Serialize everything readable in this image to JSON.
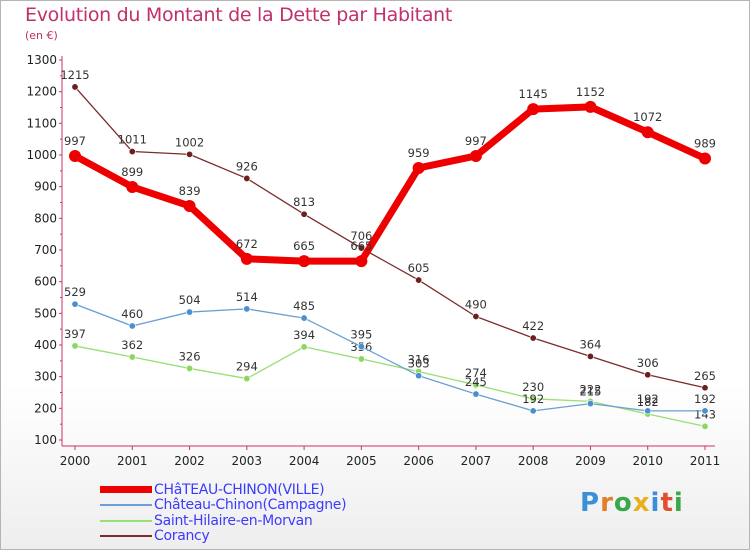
{
  "chart_data": {
    "type": "line",
    "title": "Evolution du Montant de la Dette par Habitant",
    "subtitle": "(en €)",
    "x": [
      "2000",
      "2001",
      "2002",
      "2003",
      "2004",
      "2005",
      "2006",
      "2007",
      "2008",
      "2009",
      "2010",
      "2011"
    ],
    "ylim": [
      100,
      1300
    ],
    "yticks": [
      100,
      200,
      300,
      400,
      500,
      600,
      700,
      800,
      900,
      1000,
      1100,
      1200,
      1300
    ],
    "grid": false,
    "legend_position": "bottom-left",
    "series": [
      {
        "name": "CHâTEAU-CHINON(VILLE)",
        "color": "#ee0000",
        "values": [
          997,
          899,
          839,
          672,
          665,
          665,
          959,
          997,
          1145,
          1152,
          1072,
          989
        ]
      },
      {
        "name": "Château-Chinon(Campagne)",
        "color": "#6b9fd4",
        "values": [
          529,
          460,
          504,
          514,
          485,
          395,
          303,
          245,
          192,
          215,
          192,
          192
        ]
      },
      {
        "name": "Saint-Hilaire-en-Morvan",
        "color": "#9ade74",
        "values": [
          397,
          362,
          326,
          294,
          394,
          356,
          316,
          274,
          230,
          222,
          182,
          143
        ]
      },
      {
        "name": "Corancy",
        "color": "#7a2b2b",
        "values": [
          1215,
          1011,
          1002,
          926,
          813,
          706,
          605,
          490,
          422,
          364,
          306,
          265
        ]
      }
    ]
  },
  "logo": {
    "letters": [
      "P",
      "r",
      "o",
      "x",
      "i",
      "t",
      "i"
    ],
    "colors": [
      "#3a8fd8",
      "#e0802a",
      "#3aa84a",
      "#e8b020",
      "#3a8fd8",
      "#e05030",
      "#3aa84a"
    ]
  }
}
